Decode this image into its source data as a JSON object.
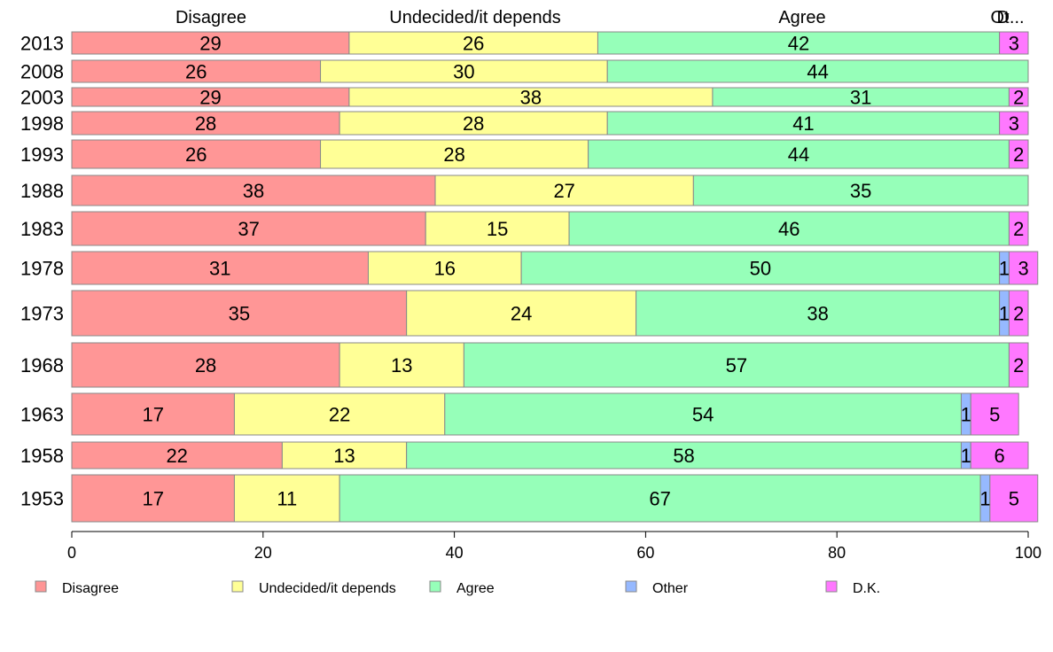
{
  "chart_data": {
    "type": "bar",
    "orientation": "horizontal",
    "stacked": true,
    "categories": [
      "2013",
      "2008",
      "2003",
      "1998",
      "1993",
      "1988",
      "1983",
      "1978",
      "1973",
      "1968",
      "1963",
      "1958",
      "1953"
    ],
    "series": [
      {
        "name": "Disagree",
        "color": "#ff9696",
        "values": [
          29,
          26,
          29,
          28,
          26,
          38,
          37,
          31,
          35,
          28,
          17,
          22,
          17
        ]
      },
      {
        "name": "Undecided/it depends",
        "color": "#ffff96",
        "values": [
          26,
          30,
          38,
          28,
          28,
          27,
          15,
          16,
          24,
          13,
          22,
          13,
          11
        ]
      },
      {
        "name": "Agree",
        "color": "#96ffb9",
        "values": [
          42,
          44,
          31,
          41,
          44,
          35,
          46,
          50,
          38,
          57,
          54,
          58,
          67
        ]
      },
      {
        "name": "Other",
        "color": "#96b9ff",
        "values": [
          0,
          0,
          0,
          0,
          0,
          0,
          0,
          1,
          1,
          0,
          1,
          1,
          1
        ]
      },
      {
        "name": "D.K.",
        "color": "#ff78ff",
        "values": [
          3,
          0,
          2,
          3,
          2,
          0,
          2,
          3,
          2,
          2,
          5,
          6,
          5
        ]
      }
    ],
    "top_labels": [
      "Disagree",
      "Undecided/it depends",
      "Agree",
      "Other",
      "D.K."
    ],
    "top_labels_display": [
      "Disagree",
      "Undecided/it depends",
      "Agree",
      "Ot",
      "D..."
    ],
    "xlim": [
      0,
      100
    ],
    "xticks": [
      "0",
      "20",
      "40",
      "60",
      "80",
      "100"
    ],
    "grid": false,
    "legend_position": "bottom",
    "legend": [
      "Disagree",
      "Undecided/it depends",
      "Agree",
      "Other",
      "D.K."
    ]
  }
}
